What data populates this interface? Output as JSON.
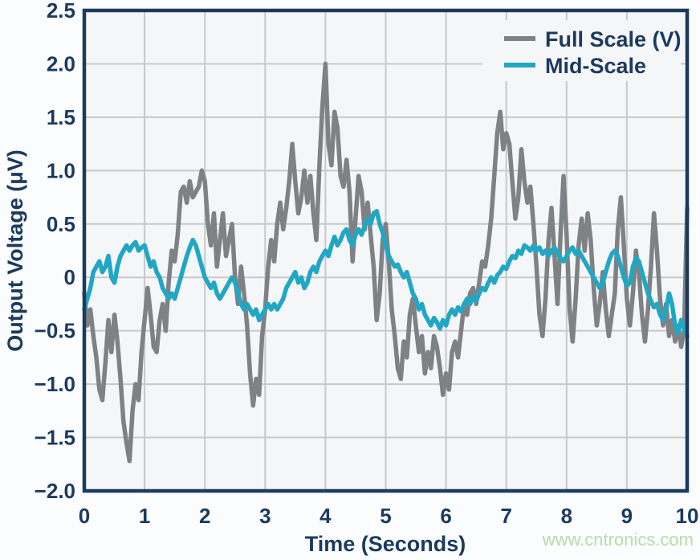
{
  "watermark": {
    "text": "www.cntronics.com"
  },
  "colors": {
    "axis": "#1b3a5e",
    "grid": "#c7c9cc",
    "plot_bg": "#f5f6f8",
    "page_bg": "#fbfcfd",
    "watermark": "#b5dda9",
    "full_scale_line": "#7f8285",
    "mid_scale_line": "#21a7c4"
  },
  "chart_data": {
    "type": "line",
    "title": "",
    "xlabel": "Time (Seconds)",
    "ylabel": "Output Voltage (μV)",
    "xlim": [
      0,
      10
    ],
    "ylim": [
      -2.0,
      2.5
    ],
    "grid": true,
    "x_grid_step": 1,
    "y_grid_step": 0.5,
    "legend_position": "top-right",
    "x_tick_values": [
      0,
      1,
      2,
      3,
      4,
      5,
      6,
      7,
      8,
      9,
      10
    ],
    "x_tick_labels": [
      "0",
      "1",
      "2",
      "3",
      "4",
      "5",
      "6",
      "7",
      "8",
      "9",
      "10"
    ],
    "y_tick_values": [
      2.5,
      2.0,
      1.5,
      1.0,
      0.5,
      0,
      -0.5,
      -1.0,
      -1.5,
      -2.0
    ],
    "y_tick_labels": [
      "2.5",
      "2.0",
      "1.5",
      "1.0",
      "0.5",
      "0",
      "−0.5",
      "−1.0",
      "−1.5",
      "−2.0"
    ],
    "sample_start": 0,
    "sample_step": 0.05,
    "series": [
      {
        "name": "Full Scale (V)",
        "color": "#7f8285",
        "values": [
          -0.15,
          -0.45,
          -0.3,
          -0.55,
          -0.75,
          -1.05,
          -1.15,
          -0.8,
          -0.4,
          -0.7,
          -0.35,
          -0.6,
          -0.95,
          -1.35,
          -1.55,
          -1.72,
          -1.25,
          -1.0,
          -1.15,
          -0.7,
          -0.4,
          -0.1,
          -0.35,
          -0.65,
          -0.7,
          -0.4,
          -0.25,
          -0.5,
          -0.05,
          0.25,
          0.15,
          0.4,
          0.8,
          0.85,
          0.7,
          0.9,
          0.75,
          0.8,
          0.85,
          1.0,
          0.9,
          0.5,
          0.3,
          0.6,
          0.1,
          0.35,
          0.6,
          0.2,
          0.35,
          0.5,
          0.0,
          -0.25,
          0.1,
          -0.15,
          -0.45,
          -0.9,
          -1.2,
          -0.95,
          -1.1,
          -0.55,
          -0.3,
          0.1,
          0.35,
          0.15,
          0.5,
          0.7,
          0.45,
          0.65,
          0.9,
          1.25,
          0.9,
          0.6,
          0.75,
          1.0,
          0.7,
          0.95,
          0.6,
          0.35,
          1.05,
          1.6,
          2.0,
          1.25,
          1.05,
          1.55,
          1.4,
          0.95,
          0.85,
          1.1,
          0.8,
          0.15,
          0.55,
          0.95,
          0.8,
          0.45,
          0.7,
          0.4,
          0.1,
          -0.4,
          -0.15,
          0.35,
          0.5,
          0.15,
          -0.3,
          -0.55,
          -0.85,
          -0.95,
          -0.6,
          -0.75,
          -0.35,
          -0.2,
          -0.45,
          -0.7,
          -0.55,
          -0.9,
          -0.7,
          -0.85,
          -0.55,
          -0.65,
          -0.85,
          -1.1,
          -0.9,
          -1.05,
          -0.7,
          -0.6,
          -0.75,
          -0.5,
          -0.25,
          -0.35,
          -0.15,
          -0.1,
          -0.25,
          -0.05,
          0.15,
          0.1,
          0.3,
          0.55,
          0.95,
          1.35,
          1.55,
          1.2,
          1.35,
          1.25,
          0.9,
          0.55,
          0.75,
          1.2,
          0.9,
          0.7,
          0.85,
          0.5,
          0.1,
          -0.35,
          -0.55,
          -0.2,
          0.35,
          0.65,
          0.2,
          -0.25,
          0.4,
          0.95,
          0.4,
          -0.3,
          -0.6,
          -0.2,
          0.3,
          0.55,
          0.25,
          0.6,
          0.35,
          -0.1,
          -0.45,
          -0.25,
          0.05,
          -0.3,
          -0.55,
          -0.35,
          -0.15,
          0.45,
          0.75,
          0.3,
          -0.2,
          -0.45,
          -0.15,
          0.25,
          0.05,
          -0.35,
          -0.6,
          -0.3,
          0.1,
          0.6,
          0.25,
          -0.2,
          -0.45,
          -0.25,
          -0.55,
          -0.4,
          -0.6,
          -0.45,
          -0.65,
          -0.5,
          0.65
        ]
      },
      {
        "name": "Mid-Scale",
        "color": "#21a7c4",
        "values": [
          -0.3,
          -0.2,
          -0.1,
          0.05,
          0.1,
          0.15,
          0.05,
          0.1,
          0.2,
          0.0,
          -0.05,
          0.1,
          0.2,
          0.25,
          0.3,
          0.25,
          0.3,
          0.33,
          0.25,
          0.28,
          0.3,
          0.2,
          0.1,
          0.15,
          0.05,
          0.0,
          -0.1,
          -0.15,
          -0.2,
          -0.15,
          -0.2,
          -0.1,
          0.0,
          0.1,
          0.2,
          0.28,
          0.35,
          0.3,
          0.2,
          0.1,
          0.0,
          -0.05,
          -0.1,
          -0.05,
          -0.15,
          -0.2,
          -0.15,
          -0.1,
          -0.05,
          0.0,
          -0.05,
          -0.15,
          -0.25,
          -0.3,
          -0.25,
          -0.3,
          -0.35,
          -0.3,
          -0.4,
          -0.35,
          -0.3,
          -0.25,
          -0.3,
          -0.25,
          -0.3,
          -0.25,
          -0.2,
          -0.1,
          -0.05,
          0.0,
          0.05,
          -0.05,
          0.0,
          -0.1,
          -0.05,
          0.05,
          0.1,
          0.05,
          0.15,
          0.2,
          0.25,
          0.2,
          0.3,
          0.38,
          0.3,
          0.35,
          0.42,
          0.45,
          0.35,
          0.3,
          0.4,
          0.45,
          0.4,
          0.48,
          0.55,
          0.5,
          0.6,
          0.62,
          0.5,
          0.42,
          0.3,
          0.2,
          0.15,
          0.1,
          0.12,
          0.05,
          0.0,
          0.05,
          -0.05,
          -0.15,
          -0.2,
          -0.3,
          -0.25,
          -0.35,
          -0.4,
          -0.45,
          -0.38,
          -0.42,
          -0.48,
          -0.4,
          -0.45,
          -0.35,
          -0.3,
          -0.35,
          -0.28,
          -0.32,
          -0.25,
          -0.2,
          -0.25,
          -0.18,
          -0.22,
          -0.15,
          -0.1,
          -0.12,
          -0.05,
          0.0,
          -0.05,
          0.02,
          0.05,
          0.1,
          0.08,
          0.15,
          0.2,
          0.18,
          0.25,
          0.22,
          0.3,
          0.28,
          0.25,
          0.3,
          0.25,
          0.28,
          0.22,
          0.25,
          0.2,
          0.25,
          0.28,
          0.22,
          0.18,
          0.15,
          0.2,
          0.25,
          0.28,
          0.22,
          0.25,
          0.2,
          0.15,
          0.1,
          0.05,
          0.0,
          -0.05,
          -0.1,
          -0.05,
          0.05,
          0.15,
          0.22,
          0.25,
          0.2,
          0.1,
          0.0,
          -0.08,
          -0.05,
          0.1,
          0.18,
          0.15,
          0.05,
          -0.05,
          -0.15,
          -0.22,
          -0.28,
          -0.25,
          -0.35,
          -0.4,
          -0.3,
          -0.15,
          -0.25,
          -0.45,
          -0.52,
          -0.4,
          -0.48,
          -0.55
        ]
      }
    ]
  }
}
